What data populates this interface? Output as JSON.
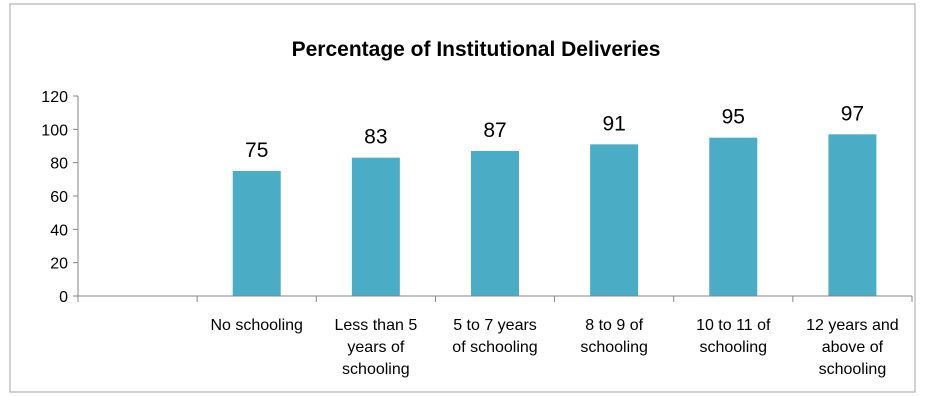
{
  "chart_data": {
    "type": "bar",
    "title": "Percentage of Institutional  Deliveries",
    "categories": [
      "",
      "No schooling",
      "Less than 5 years of schooling",
      "5 to 7 years of schooling",
      "8 to 9 of schooling",
      "10 to 11 of schooling",
      "12 years and above of schooling"
    ],
    "category_lines": [
      [],
      [
        "No schooling"
      ],
      [
        "Less than 5",
        "years of",
        "schooling"
      ],
      [
        "5 to 7 years",
        "of schooling"
      ],
      [
        "8 to 9 of",
        "schooling"
      ],
      [
        "10 to 11 of",
        "schooling"
      ],
      [
        "12 years and",
        "above of",
        "schooling"
      ]
    ],
    "values": [
      null,
      75,
      83,
      87,
      91,
      95,
      97
    ],
    "data_labels": [
      "",
      "75",
      "83",
      "87",
      "91",
      "95",
      "97"
    ],
    "ylim": [
      0,
      120
    ],
    "yticks": [
      "0",
      "20",
      "40",
      "60",
      "80",
      "100",
      "120"
    ],
    "xlabel": "",
    "ylabel": "",
    "grid": false,
    "legend": "none",
    "bar_color": "#4BACC6",
    "axis_color": "#868686",
    "border_color": "#A6A6A6"
  }
}
